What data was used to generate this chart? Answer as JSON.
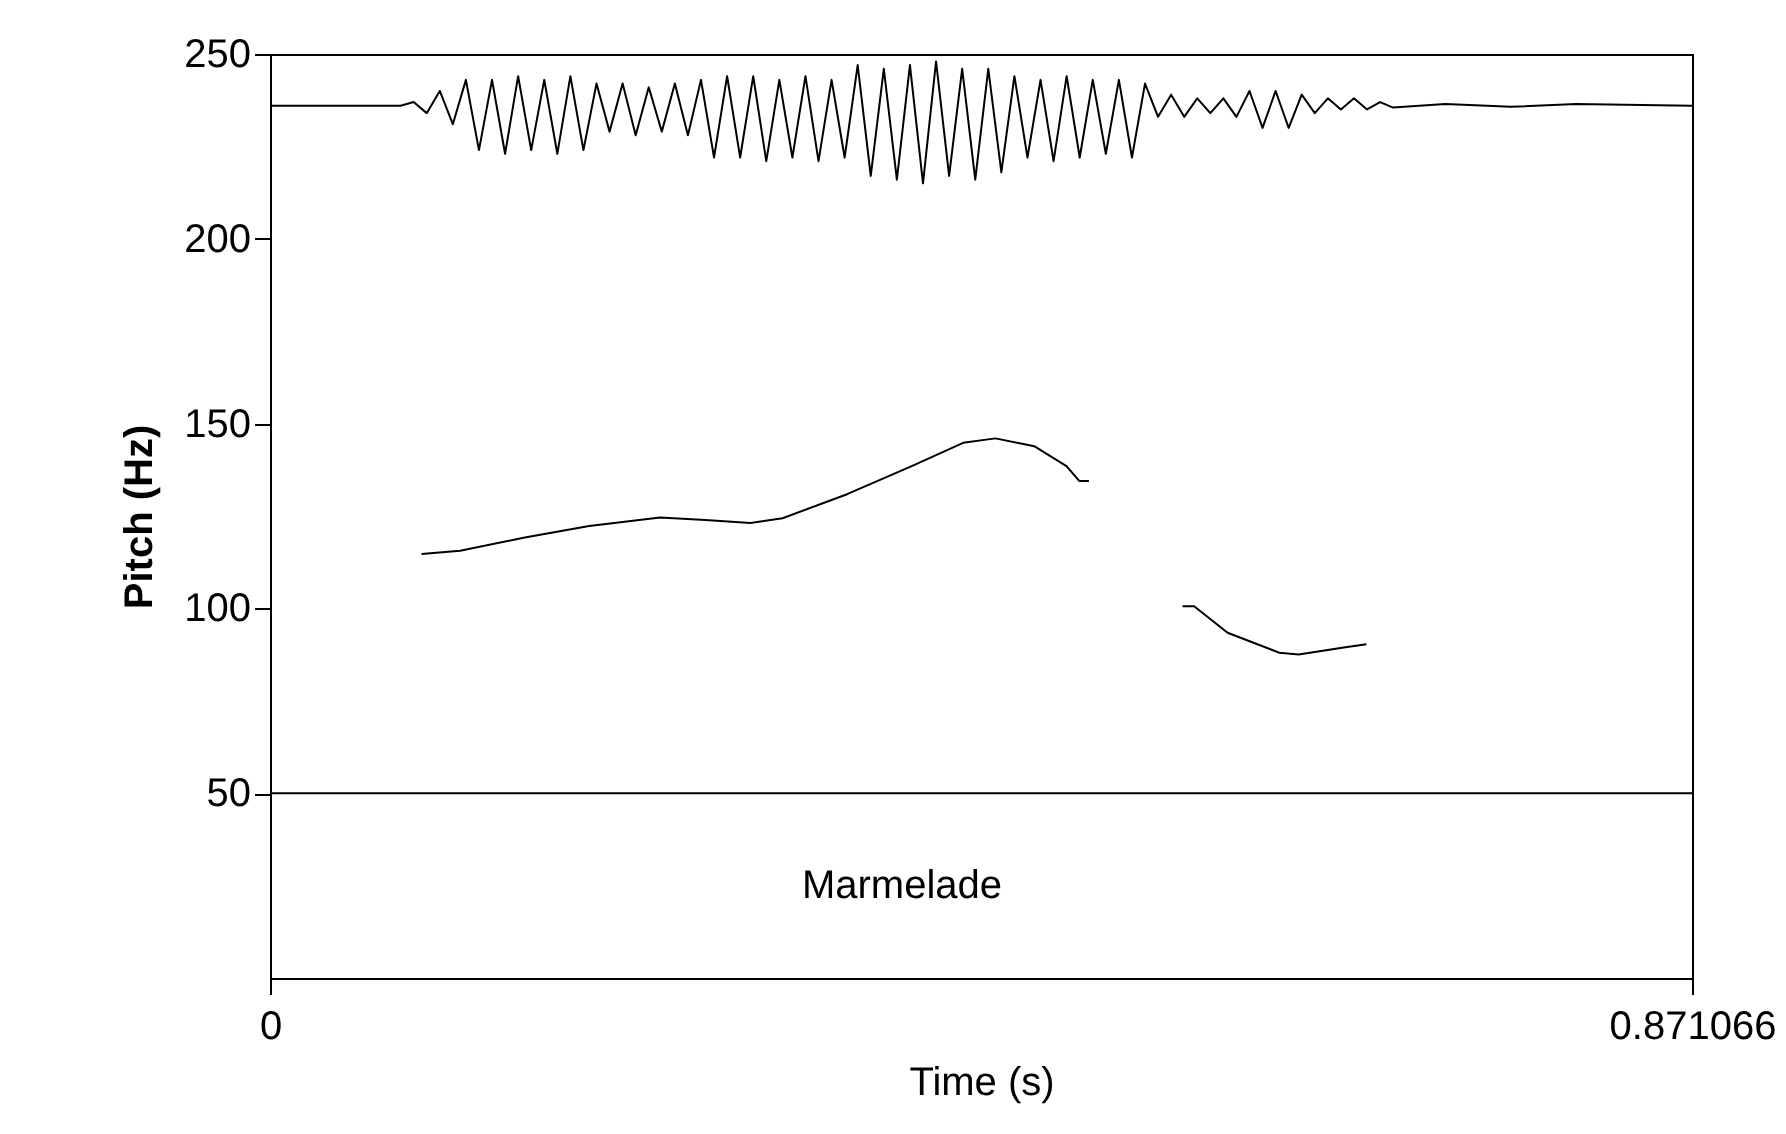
{
  "chart_data": {
    "type": "line",
    "xlabel": "Time (s)",
    "ylabel": "Pitch (Hz)",
    "xlim": [
      0,
      0.871066
    ],
    "xticks": [
      0,
      0.871066
    ],
    "ylim": [
      0,
      250
    ],
    "yticks": [
      50,
      100,
      150,
      200,
      250
    ],
    "grid": false,
    "legend": false,
    "marker": "none",
    "line_style": "solid",
    "series": [
      {
        "color": "#000000",
        "x": [
          0,
          0.08,
          0.088,
          0.096,
          0.104,
          0.112,
          0.12,
          0.128,
          0.136,
          0.144,
          0.152,
          0.16,
          0.168,
          0.176,
          0.184,
          0.192,
          0.2,
          0.208,
          0.216,
          0.224,
          0.232,
          0.24,
          0.248,
          0.256,
          0.264,
          0.272,
          0.28,
          0.288,
          0.296,
          0.304,
          0.312,
          0.32,
          0.328,
          0.336,
          0.344,
          0.352,
          0.36,
          0.368,
          0.376,
          0.384,
          0.392,
          0.4,
          0.408,
          0.416,
          0.424,
          0.432,
          0.44,
          0.448,
          0.456,
          0.464,
          0.472,
          0.48,
          0.488,
          0.496,
          0.504,
          0.512,
          0.52,
          0.528,
          0.536,
          0.544,
          0.552,
          0.56,
          0.568,
          0.576,
          0.584,
          0.592,
          0.6,
          0.608,
          0.616,
          0.624,
          0.632,
          0.64,
          0.648,
          0.656,
          0.664,
          0.672,
          0.68,
          0.688,
          0.72,
          0.76,
          0.8,
          0.871066
        ],
        "values": [
          236,
          236,
          237,
          234,
          240,
          231,
          243,
          224,
          243,
          223,
          244,
          224,
          243,
          223,
          244,
          224,
          242,
          229,
          242,
          228,
          241,
          229,
          242,
          228,
          243,
          222,
          244,
          222,
          244,
          221,
          243,
          222,
          244,
          221,
          243,
          222,
          247,
          217,
          246,
          216,
          247,
          215,
          248,
          217,
          246,
          216,
          246,
          218,
          244,
          222,
          243,
          221,
          244,
          222,
          243,
          223,
          243,
          222,
          242,
          233,
          239,
          233,
          238,
          234,
          238,
          233,
          240,
          230,
          240,
          230,
          239,
          234,
          238,
          235,
          238,
          235,
          237,
          235.5,
          236.5,
          235.7,
          236.5,
          236
        ]
      },
      {
        "color": "#000000",
        "x": [
          0.0928,
          0.1165,
          0.1561,
          0.1955,
          0.239,
          0.2667,
          0.2943,
          0.314,
          0.3535,
          0.3931,
          0.4246,
          0.4444,
          0.4681,
          0.4879,
          0.4957,
          0.5017
        ],
        "values": [
          114.7,
          115.6,
          119.2,
          122.3,
          124.6,
          123.9,
          123.1,
          124.4,
          130.9,
          138.5,
          144.8,
          146.0,
          143.9,
          138.5,
          134.5,
          134.5
        ]
      },
      {
        "color": "#000000",
        "x": [
          0.559,
          0.5661,
          0.5866,
          0.6183,
          0.6301,
          0.6577,
          0.6716
        ],
        "values": [
          100.6,
          100.6,
          93.4,
          88.0,
          87.5,
          89.4,
          90.3
        ]
      }
    ],
    "ref_lines": [
      {
        "axis": "y",
        "value": 50,
        "color": "#000000",
        "line_style": "solid"
      }
    ],
    "annotations": [
      "Marmelade"
    ]
  }
}
